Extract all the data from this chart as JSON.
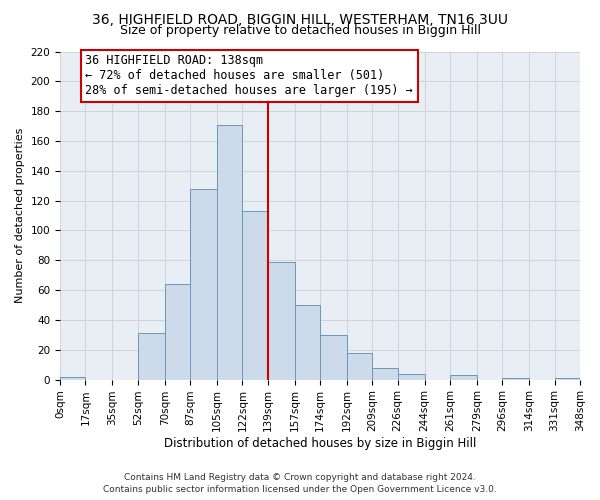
{
  "title1": "36, HIGHFIELD ROAD, BIGGIN HILL, WESTERHAM, TN16 3UU",
  "title2": "Size of property relative to detached houses in Biggin Hill",
  "xlabel": "Distribution of detached houses by size in Biggin Hill",
  "ylabel": "Number of detached properties",
  "bin_edges": [
    0,
    17,
    35,
    52,
    70,
    87,
    105,
    122,
    139,
    157,
    174,
    192,
    209,
    226,
    244,
    261,
    279,
    296,
    314,
    331,
    348
  ],
  "bar_heights": [
    2,
    0,
    0,
    31,
    64,
    128,
    171,
    113,
    79,
    50,
    30,
    18,
    8,
    4,
    0,
    3,
    0,
    1,
    0,
    1
  ],
  "tick_labels": [
    "0sqm",
    "17sqm",
    "35sqm",
    "52sqm",
    "70sqm",
    "87sqm",
    "105sqm",
    "122sqm",
    "139sqm",
    "157sqm",
    "174sqm",
    "192sqm",
    "209sqm",
    "226sqm",
    "244sqm",
    "261sqm",
    "279sqm",
    "296sqm",
    "314sqm",
    "331sqm",
    "348sqm"
  ],
  "bar_color": "#ccdaea",
  "bar_edge_color": "#6699bb",
  "grid_color": "#c8d0d8",
  "bg_color": "#e8eef4",
  "vline_x": 139,
  "vline_color": "#cc0000",
  "annotation_title": "36 HIGHFIELD ROAD: 138sqm",
  "annotation_line1": "← 72% of detached houses are smaller (501)",
  "annotation_line2": "28% of semi-detached houses are larger (195) →",
  "annotation_box_color": "#cc0000",
  "ylim": [
    0,
    220
  ],
  "yticks": [
    0,
    20,
    40,
    60,
    80,
    100,
    120,
    140,
    160,
    180,
    200,
    220
  ],
  "footnote1": "Contains HM Land Registry data © Crown copyright and database right 2024.",
  "footnote2": "Contains public sector information licensed under the Open Government Licence v3.0.",
  "title1_fontsize": 10,
  "title2_fontsize": 9,
  "xlabel_fontsize": 8.5,
  "ylabel_fontsize": 8,
  "tick_fontsize": 7.5,
  "annot_fontsize": 8.5,
  "footnote_fontsize": 6.5
}
